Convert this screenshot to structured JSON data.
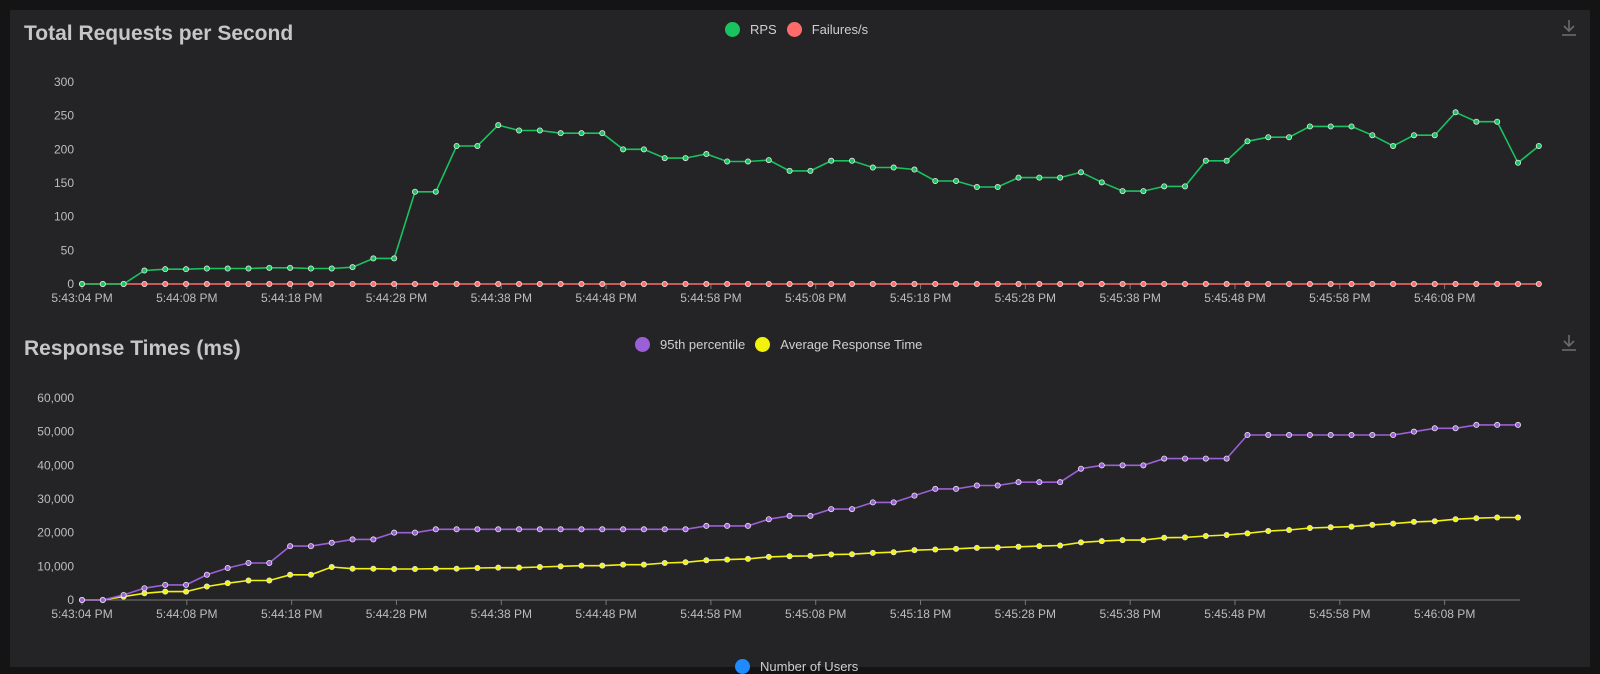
{
  "panels": {
    "rps": {
      "title": "Total Requests per Second",
      "download_icon": "download-icon"
    },
    "rt": {
      "title": "Response Times (ms)",
      "download_icon": "download-icon"
    }
  },
  "users_legend": {
    "label": "Number of Users",
    "color": "#1f8bff"
  },
  "chart_data": [
    {
      "type": "line",
      "title": "Total Requests per Second",
      "xlabel": "",
      "ylabel": "",
      "ylim": [
        0,
        300
      ],
      "yticks": [
        0,
        50,
        100,
        150,
        200,
        250,
        300
      ],
      "xtick_labels": [
        "5:43:04 PM",
        "5:44:08 PM",
        "5:44:18 PM",
        "5:44:28 PM",
        "5:44:38 PM",
        "5:44:48 PM",
        "5:44:58 PM",
        "5:45:08 PM",
        "5:45:18 PM",
        "5:45:28 PM",
        "5:45:38 PM",
        "5:45:48 PM",
        "5:45:58 PM",
        "5:46:08 PM"
      ],
      "grid": false,
      "legend_position": "top-center",
      "series": [
        {
          "name": "RPS",
          "color": "#19c35f",
          "values": [
            0,
            0,
            0,
            20,
            22,
            22,
            23,
            23,
            23,
            24,
            24,
            23,
            23,
            25,
            38,
            38,
            137,
            137,
            205,
            205,
            236,
            228,
            228,
            224,
            224,
            224,
            200,
            200,
            187,
            187,
            193,
            182,
            182,
            184,
            168,
            168,
            183,
            183,
            173,
            173,
            170,
            153,
            153,
            144,
            144,
            158,
            158,
            158,
            166,
            151,
            138,
            138,
            145,
            145,
            183,
            183,
            212,
            218,
            218,
            234,
            234,
            234,
            221,
            205,
            221,
            221,
            255,
            241,
            241,
            180,
            205
          ]
        },
        {
          "name": "Failures/s",
          "color": "#ff6b6b",
          "values": [
            0,
            0,
            0,
            0,
            0,
            0,
            0,
            0,
            0,
            0,
            0,
            0,
            0,
            0,
            0,
            0,
            0,
            0,
            0,
            0,
            0,
            0,
            0,
            0,
            0,
            0,
            0,
            0,
            0,
            0,
            0,
            0,
            0,
            0,
            0,
            0,
            0,
            0,
            0,
            0,
            0,
            0,
            0,
            0,
            0,
            0,
            0,
            0,
            0,
            0,
            0,
            0,
            0,
            0,
            0,
            0,
            0,
            0,
            0,
            0,
            0,
            0,
            0,
            0,
            0,
            0,
            0,
            0,
            0,
            0,
            0
          ]
        }
      ]
    },
    {
      "type": "line",
      "title": "Response Times (ms)",
      "xlabel": "",
      "ylabel": "",
      "ylim": [
        0,
        60000
      ],
      "yticks": [
        0,
        10000,
        20000,
        30000,
        40000,
        50000,
        60000
      ],
      "ytick_labels": [
        "0",
        "10,000",
        "20,000",
        "30,000",
        "40,000",
        "50,000",
        "60,000"
      ],
      "xtick_labels": [
        "5:43:04 PM",
        "5:44:08 PM",
        "5:44:18 PM",
        "5:44:28 PM",
        "5:44:38 PM",
        "5:44:48 PM",
        "5:44:58 PM",
        "5:45:08 PM",
        "5:45:18 PM",
        "5:45:28 PM",
        "5:45:38 PM",
        "5:45:48 PM",
        "5:45:58 PM",
        "5:46:08 PM"
      ],
      "grid": false,
      "legend_position": "top-center",
      "series": [
        {
          "name": "95th percentile",
          "color": "#9b5fd6",
          "values": [
            0,
            0,
            1500,
            3500,
            4500,
            4500,
            7500,
            9500,
            11000,
            11000,
            16000,
            16000,
            17000,
            18000,
            18000,
            20000,
            20000,
            21000,
            21000,
            21000,
            21000,
            21000,
            21000,
            21000,
            21000,
            21000,
            21000,
            21000,
            21000,
            21000,
            22000,
            22000,
            22000,
            24000,
            25000,
            25000,
            27000,
            27000,
            29000,
            29000,
            31000,
            33000,
            33000,
            34000,
            34000,
            35000,
            35000,
            35000,
            39000,
            40000,
            40000,
            40000,
            42000,
            42000,
            42000,
            42000,
            49000,
            49000,
            49000,
            49000,
            49000,
            49000,
            49000,
            49000,
            50000,
            51000,
            51000,
            52000,
            52000,
            52000
          ]
        },
        {
          "name": "Average Response Time",
          "color": "#f2f20f",
          "values": [
            0,
            0,
            1000,
            2000,
            2500,
            2500,
            4000,
            5000,
            5800,
            5800,
            7500,
            7500,
            9800,
            9300,
            9300,
            9200,
            9200,
            9300,
            9300,
            9500,
            9600,
            9600,
            9800,
            10000,
            10200,
            10200,
            10500,
            10500,
            11000,
            11200,
            11800,
            12000,
            12200,
            12800,
            13000,
            13100,
            13500,
            13600,
            14000,
            14200,
            14800,
            15000,
            15200,
            15500,
            15600,
            15800,
            16000,
            16200,
            17100,
            17500,
            17800,
            17800,
            18500,
            18600,
            19000,
            19300,
            19800,
            20500,
            20800,
            21400,
            21600,
            21800,
            22300,
            22700,
            23200,
            23400,
            24000,
            24300,
            24500,
            24500
          ]
        }
      ]
    }
  ]
}
